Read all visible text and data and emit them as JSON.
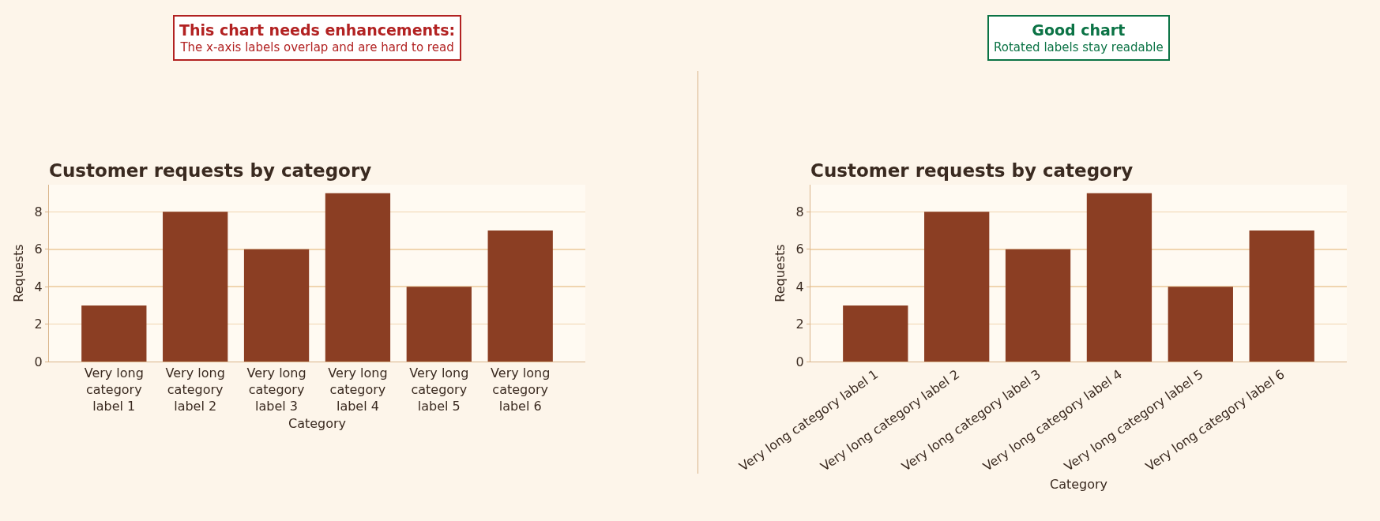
{
  "chart_data": [
    {
      "type": "bar",
      "title": "Customer requests by category",
      "xlabel": "Category",
      "ylabel": "Requests",
      "annotations": [
        "This chart needs enhancements:",
        "The x-axis labels overlap and are hard to read"
      ],
      "categories": [
        "Very long category label 1",
        "Very long category label 2",
        "Very long category label 3",
        "Very long category label 4",
        "Very long category label 5",
        "Very long category label 6"
      ],
      "values": [
        3,
        8,
        6,
        9,
        4,
        7
      ],
      "color": "#8b3e23",
      "ylim": [
        0,
        9.45
      ],
      "yticks": [
        0,
        2,
        4,
        6,
        8
      ],
      "grid": "y"
    },
    {
      "type": "bar",
      "title": "Customer requests by category",
      "xlabel": "Category",
      "ylabel": "Requests",
      "annotations": [
        "Good chart",
        "Rotated labels stay readable"
      ],
      "categories": [
        "Very long category label 1",
        "Very long category label 2",
        "Very long category label 3",
        "Very long category label 4",
        "Very long category label 5",
        "Very long category label 6"
      ],
      "values": [
        3,
        8,
        6,
        9,
        4,
        7
      ],
      "color": "#8b3e23",
      "ylim": [
        0,
        9.45
      ],
      "yticks": [
        0,
        2,
        4,
        6,
        8
      ],
      "grid": "y"
    }
  ]
}
